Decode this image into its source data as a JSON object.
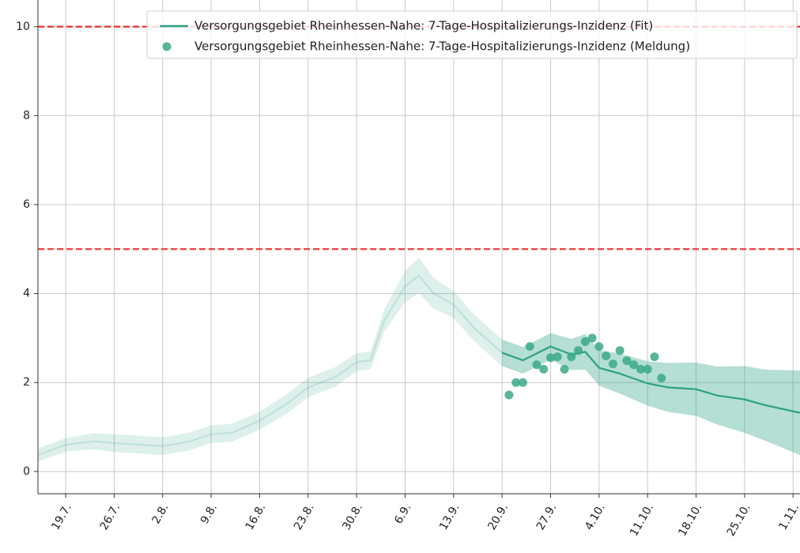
{
  "chart_data": {
    "type": "line",
    "xlim": [
      "15.7.",
      "2.11."
    ],
    "xticks": [
      "19.7.",
      "26.7.",
      "2.8.",
      "9.8.",
      "16.8.",
      "23.8.",
      "30.8.",
      "6.9.",
      "13.9.",
      "20.9.",
      "27.9.",
      "4.10.",
      "11.10.",
      "18.10.",
      "25.10.",
      "1.11."
    ],
    "ylim": [
      -0.5,
      10.6
    ],
    "yticks": [
      0,
      2,
      4,
      6,
      8,
      10
    ],
    "grid": true,
    "legend": "upper right",
    "faded_before": "20.9.",
    "hlines": [
      {
        "value": 10,
        "color": "#f03030"
      },
      {
        "value": 5,
        "color": "#f03030"
      }
    ],
    "series": [
      {
        "name": "Versorgungsgebiet Rheinhessen-Nahe: 7-Tage-Hospitalizierungs-Inzidenz (Fit)",
        "type": "line",
        "color": "#2ca084",
        "x": [
          "15.7.",
          "19.7.",
          "23.7.",
          "26.7.",
          "30.7.",
          "2.8.",
          "6.8.",
          "9.8.",
          "12.8.",
          "16.8.",
          "20.8.",
          "23.8.",
          "27.8.",
          "30.8.",
          "1.9.",
          "3.9.",
          "6.9.",
          "8.9.",
          "10.9.",
          "13.9.",
          "16.9.",
          "20.9.",
          "23.9.",
          "27.9.",
          "30.9.",
          "2.10.",
          "4.10.",
          "7.10.",
          "11.10.",
          "14.10.",
          "18.10.",
          "21.10.",
          "25.10.",
          "28.10.",
          "2.11."
        ],
        "values": [
          0.37,
          0.6,
          0.68,
          0.64,
          0.6,
          0.57,
          0.68,
          0.84,
          0.87,
          1.14,
          1.53,
          1.89,
          2.13,
          2.46,
          2.5,
          3.4,
          4.16,
          4.41,
          4.02,
          3.75,
          3.22,
          2.67,
          2.5,
          2.81,
          2.63,
          2.69,
          2.33,
          2.2,
          1.98,
          1.89,
          1.85,
          1.71,
          1.62,
          1.49,
          1.32
        ],
        "lower": [
          0.22,
          0.45,
          0.5,
          0.44,
          0.4,
          0.37,
          0.48,
          0.64,
          0.67,
          0.94,
          1.31,
          1.67,
          1.91,
          2.26,
          2.3,
          3.15,
          3.81,
          4.01,
          3.67,
          3.45,
          2.92,
          2.37,
          2.2,
          2.51,
          2.28,
          2.29,
          1.93,
          1.75,
          1.48,
          1.34,
          1.25,
          1.06,
          0.87,
          0.69,
          0.37
        ],
        "upper": [
          0.52,
          0.75,
          0.86,
          0.84,
          0.8,
          0.77,
          0.88,
          1.04,
          1.07,
          1.34,
          1.75,
          2.11,
          2.35,
          2.66,
          2.7,
          3.65,
          4.51,
          4.81,
          4.37,
          4.05,
          3.52,
          2.97,
          2.8,
          3.11,
          2.98,
          3.09,
          2.73,
          2.65,
          2.48,
          2.44,
          2.45,
          2.36,
          2.37,
          2.29,
          2.27
        ]
      },
      {
        "name": "Versorgungsgebiet Rheinhessen-Nahe: 7-Tage-Hospitalizierungs-Inzidenz (Meldung)",
        "type": "scatter",
        "color": "#3aa988",
        "x": [
          "21.9.",
          "22.9.",
          "23.9.",
          "24.9.",
          "25.9.",
          "26.9.",
          "27.9.",
          "28.9.",
          "29.9.",
          "30.9.",
          "1.10.",
          "2.10.",
          "3.10.",
          "4.10.",
          "5.10.",
          "6.10.",
          "7.10.",
          "8.10.",
          "9.10.",
          "10.10.",
          "11.10.",
          "12.10.",
          "13.10."
        ],
        "values": [
          1.72,
          2.0,
          2.0,
          2.81,
          2.4,
          2.3,
          2.56,
          2.58,
          2.3,
          2.58,
          2.72,
          2.92,
          3.0,
          2.81,
          2.6,
          2.42,
          2.72,
          2.49,
          2.4,
          2.3,
          2.3,
          2.58,
          2.1
        ]
      }
    ]
  }
}
